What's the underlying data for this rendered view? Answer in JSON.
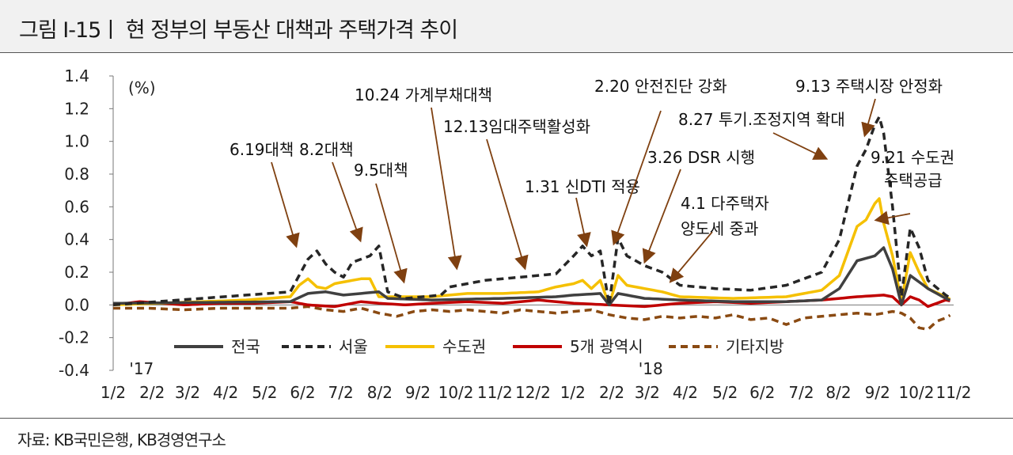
{
  "page": {
    "title": "그림 Ⅰ-15ㅣ 현 정부의 부동산 대책과 주택가격 추이",
    "source": "자료: KB국민은행, KB경영연구소"
  },
  "chart_data": {
    "type": "line",
    "ylabel": "(%)",
    "ylim": [
      -0.4,
      1.4
    ],
    "yticks": [
      -0.4,
      -0.2,
      0.0,
      0.2,
      0.4,
      0.6,
      0.8,
      1.0,
      1.2,
      1.4
    ],
    "ytick_labels": [
      "-0.4",
      "-0.2",
      "0.0",
      "0.2",
      "0.4",
      "0.6",
      "0.8",
      "1.0",
      "1.2",
      "1.4"
    ],
    "x_label_weeks": [
      0,
      4.4,
      8.4,
      12.7,
      17.1,
      21.4,
      25.7,
      30.1,
      34.4,
      38.7,
      43.1,
      47.4,
      51.9,
      56.3,
      60.3,
      64.6,
      69.1,
      73.3,
      77.7,
      81.9,
      86.3,
      90.7,
      94.9,
      99.3,
      103.6
    ],
    "x_labels": [
      "1/2",
      "2/2",
      "3/2",
      "4/2",
      "5/2",
      "6/2",
      "7/2",
      "8/2",
      "9/2",
      "10/2",
      "11/2",
      "12/2",
      "1/2",
      "2/2",
      "3/2",
      "4/2",
      "5/2",
      "6/2",
      "7/2",
      "8/2",
      "9/2",
      "10/2",
      "11/2"
    ],
    "x_label_positions": [
      0,
      4.4,
      8.4,
      12.7,
      17.1,
      21.4,
      25.7,
      30.1,
      34.4,
      38.7,
      43.1,
      47.4,
      51.9,
      56.3,
      60.3,
      64.6,
      69.1,
      73.3,
      77.7,
      81.9,
      86.3,
      90.7,
      94.9
    ],
    "year_labels": [
      {
        "text": "'17",
        "week": 3.2
      },
      {
        "text": "'18",
        "week": 60.7
      }
    ],
    "x_max": 94.9,
    "series": [
      {
        "name": "전국",
        "color": "#404040",
        "dash": false,
        "knots": [
          [
            0,
            0.01
          ],
          [
            20,
            0.02
          ],
          [
            22,
            0.07
          ],
          [
            24,
            0.08
          ],
          [
            26,
            0.06
          ],
          [
            28,
            0.07
          ],
          [
            30,
            0.08
          ],
          [
            31,
            0.04
          ],
          [
            36,
            0.03
          ],
          [
            44,
            0.04
          ],
          [
            50,
            0.05
          ],
          [
            52,
            0.06
          ],
          [
            55,
            0.07
          ],
          [
            56,
            0.0
          ],
          [
            57,
            0.07
          ],
          [
            60,
            0.04
          ],
          [
            64,
            0.03
          ],
          [
            70,
            0.02
          ],
          [
            76,
            0.02
          ],
          [
            80,
            0.03
          ],
          [
            82,
            0.1
          ],
          [
            84,
            0.27
          ],
          [
            86,
            0.3
          ],
          [
            87,
            0.35
          ],
          [
            88,
            0.22
          ],
          [
            89,
            0.0
          ],
          [
            90,
            0.18
          ],
          [
            92,
            0.1
          ],
          [
            94,
            0.04
          ],
          [
            94.9,
            0.02
          ]
        ]
      },
      {
        "name": "서울",
        "color": "#262626",
        "dash": true,
        "knots": [
          [
            0,
            0.0
          ],
          [
            5,
            0.02
          ],
          [
            10,
            0.04
          ],
          [
            15,
            0.06
          ],
          [
            20,
            0.08
          ],
          [
            22,
            0.28
          ],
          [
            23,
            0.33
          ],
          [
            24,
            0.25
          ],
          [
            25,
            0.2
          ],
          [
            26,
            0.17
          ],
          [
            27,
            0.26
          ],
          [
            29,
            0.3
          ],
          [
            30,
            0.36
          ],
          [
            31,
            0.08
          ],
          [
            33,
            0.04
          ],
          [
            35,
            0.05
          ],
          [
            37,
            0.06
          ],
          [
            38,
            0.11
          ],
          [
            40,
            0.13
          ],
          [
            42,
            0.15
          ],
          [
            46,
            0.17
          ],
          [
            50,
            0.19
          ],
          [
            52,
            0.3
          ],
          [
            53,
            0.36
          ],
          [
            54,
            0.3
          ],
          [
            55,
            0.33
          ],
          [
            56,
            0.0
          ],
          [
            57,
            0.41
          ],
          [
            58,
            0.3
          ],
          [
            60,
            0.24
          ],
          [
            62,
            0.2
          ],
          [
            64,
            0.12
          ],
          [
            68,
            0.1
          ],
          [
            72,
            0.09
          ],
          [
            76,
            0.12
          ],
          [
            80,
            0.2
          ],
          [
            82,
            0.4
          ],
          [
            84,
            0.85
          ],
          [
            85,
            0.95
          ],
          [
            86,
            1.1
          ],
          [
            86.5,
            1.15
          ],
          [
            87,
            1.05
          ],
          [
            88,
            0.6
          ],
          [
            89,
            0.05
          ],
          [
            90,
            0.47
          ],
          [
            91,
            0.35
          ],
          [
            92,
            0.15
          ],
          [
            94,
            0.06
          ],
          [
            94.9,
            0.03
          ]
        ]
      },
      {
        "name": "수도권",
        "color": "#f5c000",
        "dash": false,
        "knots": [
          [
            0,
            0.0
          ],
          [
            5,
            0.01
          ],
          [
            10,
            0.02
          ],
          [
            15,
            0.03
          ],
          [
            20,
            0.05
          ],
          [
            21,
            0.12
          ],
          [
            22,
            0.16
          ],
          [
            23,
            0.11
          ],
          [
            24,
            0.1
          ],
          [
            25,
            0.13
          ],
          [
            26,
            0.14
          ],
          [
            27,
            0.15
          ],
          [
            28,
            0.16
          ],
          [
            29,
            0.16
          ],
          [
            30,
            0.05
          ],
          [
            33,
            0.05
          ],
          [
            36,
            0.05
          ],
          [
            38,
            0.06
          ],
          [
            40,
            0.07
          ],
          [
            44,
            0.07
          ],
          [
            48,
            0.08
          ],
          [
            50,
            0.11
          ],
          [
            52,
            0.13
          ],
          [
            53,
            0.15
          ],
          [
            54,
            0.1
          ],
          [
            55,
            0.15
          ],
          [
            56,
            0.0
          ],
          [
            57,
            0.18
          ],
          [
            58,
            0.12
          ],
          [
            60,
            0.1
          ],
          [
            62,
            0.08
          ],
          [
            64,
            0.05
          ],
          [
            70,
            0.04
          ],
          [
            76,
            0.05
          ],
          [
            80,
            0.09
          ],
          [
            82,
            0.18
          ],
          [
            84,
            0.48
          ],
          [
            85,
            0.52
          ],
          [
            86,
            0.62
          ],
          [
            86.5,
            0.65
          ],
          [
            87,
            0.5
          ],
          [
            88,
            0.3
          ],
          [
            89,
            0.02
          ],
          [
            90,
            0.32
          ],
          [
            91,
            0.2
          ],
          [
            92,
            0.1
          ],
          [
            94,
            0.05
          ],
          [
            94.9,
            0.02
          ]
        ]
      },
      {
        "name": "5개 광역시",
        "color": "#c00000",
        "dash": false,
        "knots": [
          [
            0,
            0.0
          ],
          [
            3,
            0.02
          ],
          [
            8,
            0.0
          ],
          [
            12,
            0.01
          ],
          [
            16,
            0.01
          ],
          [
            20,
            0.02
          ],
          [
            22,
            0.0
          ],
          [
            25,
            -0.01
          ],
          [
            28,
            0.02
          ],
          [
            30,
            0.01
          ],
          [
            33,
            0.0
          ],
          [
            36,
            0.01
          ],
          [
            40,
            0.02
          ],
          [
            44,
            0.01
          ],
          [
            48,
            0.03
          ],
          [
            52,
            0.01
          ],
          [
            56,
            0.0
          ],
          [
            60,
            -0.01
          ],
          [
            64,
            0.01
          ],
          [
            68,
            0.02
          ],
          [
            72,
            0.01
          ],
          [
            76,
            0.02
          ],
          [
            80,
            0.03
          ],
          [
            84,
            0.05
          ],
          [
            87,
            0.06
          ],
          [
            88,
            0.05
          ],
          [
            89,
            0.0
          ],
          [
            90,
            0.05
          ],
          [
            91,
            0.03
          ],
          [
            92,
            -0.01
          ],
          [
            93,
            0.01
          ],
          [
            94,
            0.03
          ],
          [
            94.9,
            0.02
          ]
        ]
      },
      {
        "name": "기타지방",
        "color": "#8a4a12",
        "dash": true,
        "knots": [
          [
            0,
            -0.02
          ],
          [
            4,
            -0.02
          ],
          [
            8,
            -0.03
          ],
          [
            12,
            -0.02
          ],
          [
            16,
            -0.02
          ],
          [
            20,
            -0.02
          ],
          [
            22,
            -0.01
          ],
          [
            24,
            -0.03
          ],
          [
            26,
            -0.04
          ],
          [
            28,
            -0.02
          ],
          [
            30,
            -0.05
          ],
          [
            32,
            -0.07
          ],
          [
            34,
            -0.04
          ],
          [
            36,
            -0.03
          ],
          [
            38,
            -0.04
          ],
          [
            40,
            -0.03
          ],
          [
            42,
            -0.04
          ],
          [
            44,
            -0.05
          ],
          [
            46,
            -0.03
          ],
          [
            48,
            -0.04
          ],
          [
            50,
            -0.05
          ],
          [
            52,
            -0.04
          ],
          [
            54,
            -0.03
          ],
          [
            56,
            -0.06
          ],
          [
            58,
            -0.08
          ],
          [
            60,
            -0.09
          ],
          [
            62,
            -0.07
          ],
          [
            64,
            -0.08
          ],
          [
            66,
            -0.07
          ],
          [
            68,
            -0.08
          ],
          [
            70,
            -0.06
          ],
          [
            72,
            -0.09
          ],
          [
            74,
            -0.08
          ],
          [
            76,
            -0.12
          ],
          [
            78,
            -0.08
          ],
          [
            80,
            -0.07
          ],
          [
            82,
            -0.06
          ],
          [
            84,
            -0.05
          ],
          [
            86,
            -0.06
          ],
          [
            88,
            -0.04
          ],
          [
            89,
            -0.05
          ],
          [
            90,
            -0.08
          ],
          [
            91,
            -0.14
          ],
          [
            92,
            -0.15
          ],
          [
            93,
            -0.1
          ],
          [
            94,
            -0.08
          ],
          [
            94.9,
            -0.05
          ]
        ]
      }
    ],
    "annotations": [
      {
        "text": "6.19대책",
        "week": 22.5
      },
      {
        "text": "8.2대책",
        "week": 29.8
      },
      {
        "text": "9.5대책",
        "week": 34.1
      },
      {
        "text": "10.24 가계부채대책",
        "week": 41.6
      },
      {
        "text": "12.13임대주택활성화",
        "week": 48.0
      },
      {
        "text": "1.31 신DTI 적용",
        "week": 52.9
      },
      {
        "text": "2.20 안전진단 강화",
        "week": 57.0
      },
      {
        "text": "3.26 DSR 시행",
        "week": 59.6
      },
      {
        "text": "4.1 다주택자",
        "week": 63.2
      },
      {
        "text": "양도세 중과",
        "week": 63.2
      },
      {
        "text": "8.27 투기.조정지역 확대",
        "week": 83.5
      },
      {
        "text": "9.13 주택시장 안정화",
        "week": 86.6
      },
      {
        "text": "9.21 수도권",
        "week": 88.7
      },
      {
        "text": "주택공급",
        "week": 88.7
      }
    ]
  }
}
